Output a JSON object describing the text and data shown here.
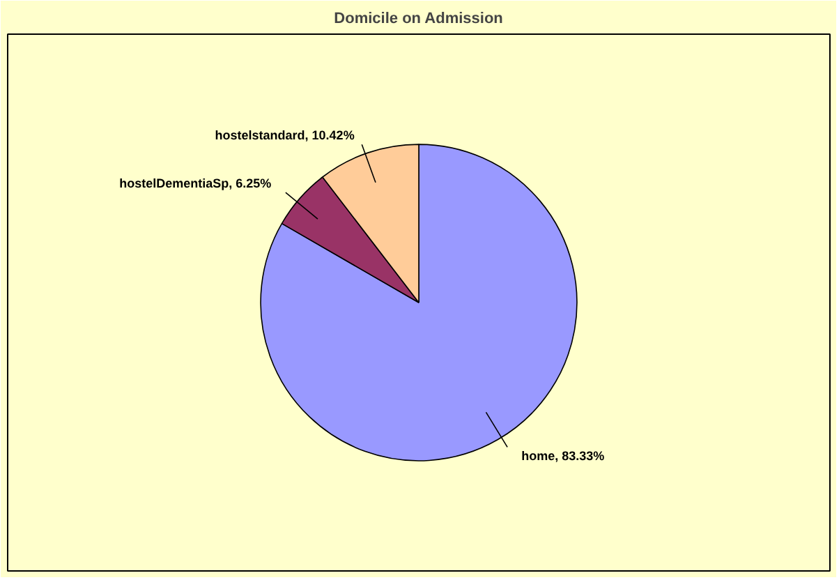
{
  "chart_data": {
    "type": "pie",
    "title": "Domicile on Admission",
    "categories": [
      "home",
      "hostelDementiaSp",
      "hostelstandard"
    ],
    "values": [
      83.33,
      6.25,
      10.42
    ],
    "value_labels": [
      ", 83.33%",
      ", 6.25%",
      ", 10.42%"
    ],
    "colors": [
      "#9999ff",
      "#993366",
      "#ffcc99"
    ]
  }
}
